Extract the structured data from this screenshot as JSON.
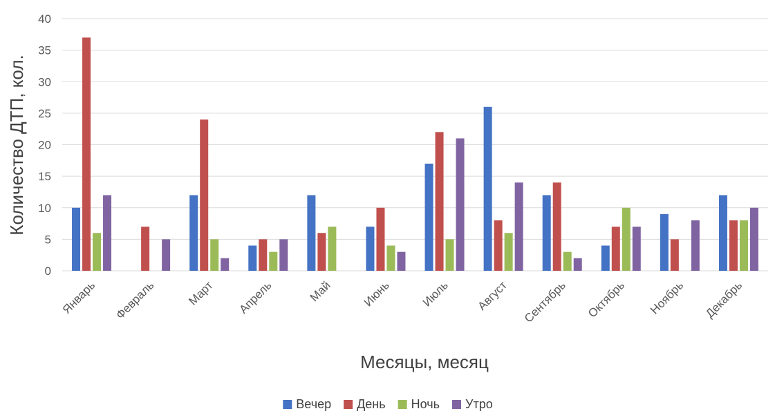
{
  "chart_data": {
    "type": "bar",
    "title": "",
    "xlabel": "Месяцы, месяц",
    "ylabel": "Количество ДТП, кол.",
    "ylim": [
      0,
      40
    ],
    "yticks": [
      0,
      5,
      10,
      15,
      20,
      25,
      30,
      35,
      40
    ],
    "grid": true,
    "legend_position": "bottom",
    "categories": [
      "Январь",
      "Февраль",
      "Март",
      "Апрель",
      "Май",
      "Июнь",
      "Июль",
      "Август",
      "Сентябрь",
      "Октябрь",
      "Ноябрь",
      "Декабрь"
    ],
    "series": [
      {
        "name": "Вечер",
        "color": "#4472C4",
        "values": [
          10,
          0,
          12,
          4,
          12,
          7,
          17,
          26,
          12,
          4,
          9,
          12
        ]
      },
      {
        "name": "День",
        "color": "#C0504D",
        "values": [
          37,
          7,
          24,
          5,
          6,
          10,
          22,
          8,
          14,
          7,
          5,
          8
        ]
      },
      {
        "name": "Ночь",
        "color": "#9BBB59",
        "values": [
          6,
          0,
          5,
          3,
          7,
          4,
          5,
          6,
          3,
          10,
          0,
          8
        ]
      },
      {
        "name": "Утро",
        "color": "#8064A2",
        "values": [
          12,
          5,
          2,
          5,
          0,
          3,
          21,
          14,
          2,
          7,
          8,
          10
        ]
      }
    ]
  }
}
